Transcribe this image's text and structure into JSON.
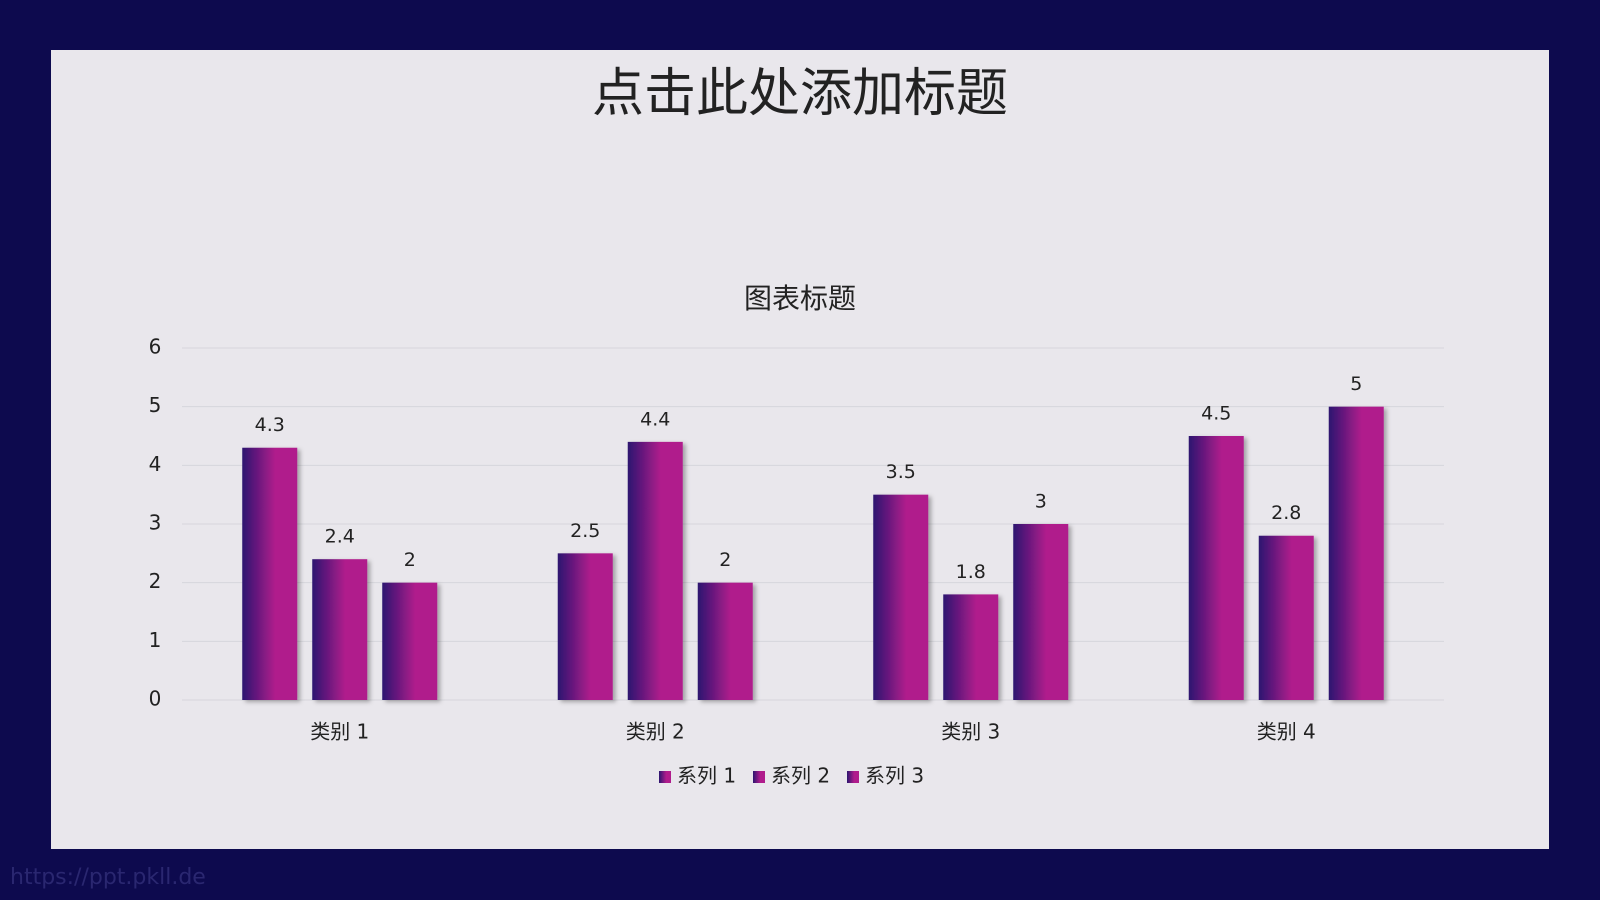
{
  "slide_title": "点击此处添加标题",
  "watermark": "https://ppt.pkll.de",
  "chart_data": {
    "type": "bar",
    "title": "图表标题",
    "categories": [
      "类别 1",
      "类别 2",
      "类别 3",
      "类别 4"
    ],
    "series": [
      {
        "name": "系列 1",
        "color": "#b01c8c",
        "values": [
          4.3,
          2.5,
          3.5,
          4.5
        ]
      },
      {
        "name": "系列 2",
        "color": "#b01c8c",
        "values": [
          2.4,
          4.4,
          1.8,
          2.8
        ]
      },
      {
        "name": "系列 3",
        "color": "#b01c8c",
        "values": [
          2,
          2,
          3,
          5
        ]
      }
    ],
    "ylim": [
      0,
      6
    ],
    "yticks": [
      0,
      1,
      2,
      3,
      4,
      5,
      6
    ],
    "grid": true,
    "legend": "bottom",
    "data_labels": true
  }
}
